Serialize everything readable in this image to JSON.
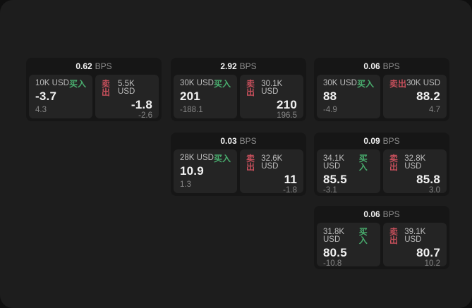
{
  "colors": {
    "page_bg": "#0f0f0f",
    "panel_bg": "#1d1d1d",
    "card_bg": "#161616",
    "tile_bg": "#242424",
    "buy_green": "#49ad6e",
    "sell_red": "#c8505c",
    "value_white": "#f2f2f2",
    "size_label_gray": "#bdbdbd",
    "muted_gray": "#858585",
    "bps_unit_gray": "#8c8c8c"
  },
  "labels": {
    "bps_unit": "BPS",
    "buy": "买入",
    "sell": "卖出"
  },
  "cards": [
    {
      "bps": "0.62",
      "buy": {
        "size": "10K USD",
        "price": "-3.7",
        "delta": "4.3"
      },
      "sell": {
        "size": "5.5K USD",
        "price": "-1.8",
        "delta": "-2.6"
      }
    },
    {
      "bps": "2.92",
      "buy": {
        "size": "30K USD",
        "price": "201",
        "delta": "-188.1"
      },
      "sell": {
        "size": "30.1K USD",
        "price": "210",
        "delta": "196.5"
      }
    },
    {
      "bps": "0.06",
      "buy": {
        "size": "30K USD",
        "price": "88",
        "delta": "-4.9"
      },
      "sell": {
        "size": "30K USD",
        "price": "88.2",
        "delta": "4.7"
      }
    },
    {
      "bps": "0.03",
      "buy": {
        "size": "28K USD",
        "price": "10.9",
        "delta": "1.3"
      },
      "sell": {
        "size": "32.6K USD",
        "price": "11",
        "delta": "-1.8"
      }
    },
    {
      "bps": "0.09",
      "buy": {
        "size": "34.1K USD",
        "price": "85.5",
        "delta": "-3.1"
      },
      "sell": {
        "size": "32.8K USD",
        "price": "85.8",
        "delta": "3.0"
      }
    },
    {
      "bps": "0.06",
      "buy": {
        "size": "31.8K USD",
        "price": "80.5",
        "delta": "-10.8"
      },
      "sell": {
        "size": "39.1K USD",
        "price": "80.7",
        "delta": "10.2"
      }
    }
  ]
}
